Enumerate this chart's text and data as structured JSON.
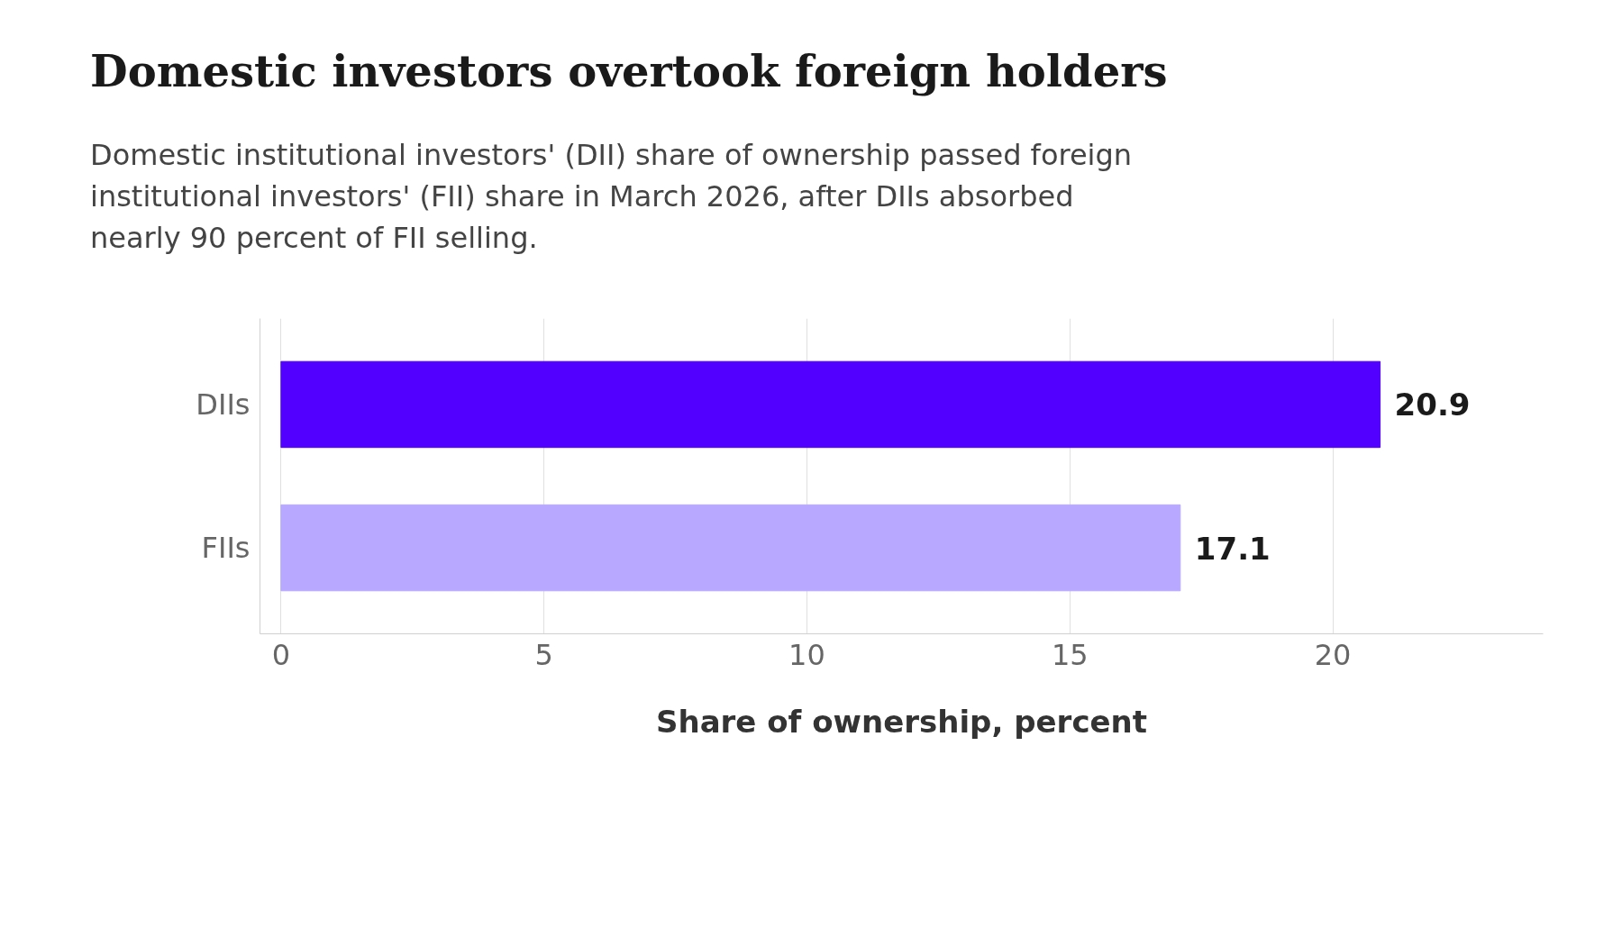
{
  "chart_data": {
    "type": "bar",
    "orientation": "horizontal",
    "title": "Domestic investors overtook foreign holders",
    "subtitle": "Domestic institutional investors' (DII) share of ownership passed foreign institutional investors' (FII) share in March 2026, after DIIs absorbed nearly 90 percent of FII selling.",
    "categories": [
      "DIIs",
      "FIIs"
    ],
    "values": [
      20.9,
      17.1
    ],
    "colors": [
      "#5200ff",
      "#b8a8ff"
    ],
    "xlabel": "Share of ownership, percent",
    "xlim": [
      -0.4,
      24
    ],
    "xticks": [
      0,
      5,
      10,
      15,
      20
    ],
    "grid": "x",
    "data_labels": true
  }
}
